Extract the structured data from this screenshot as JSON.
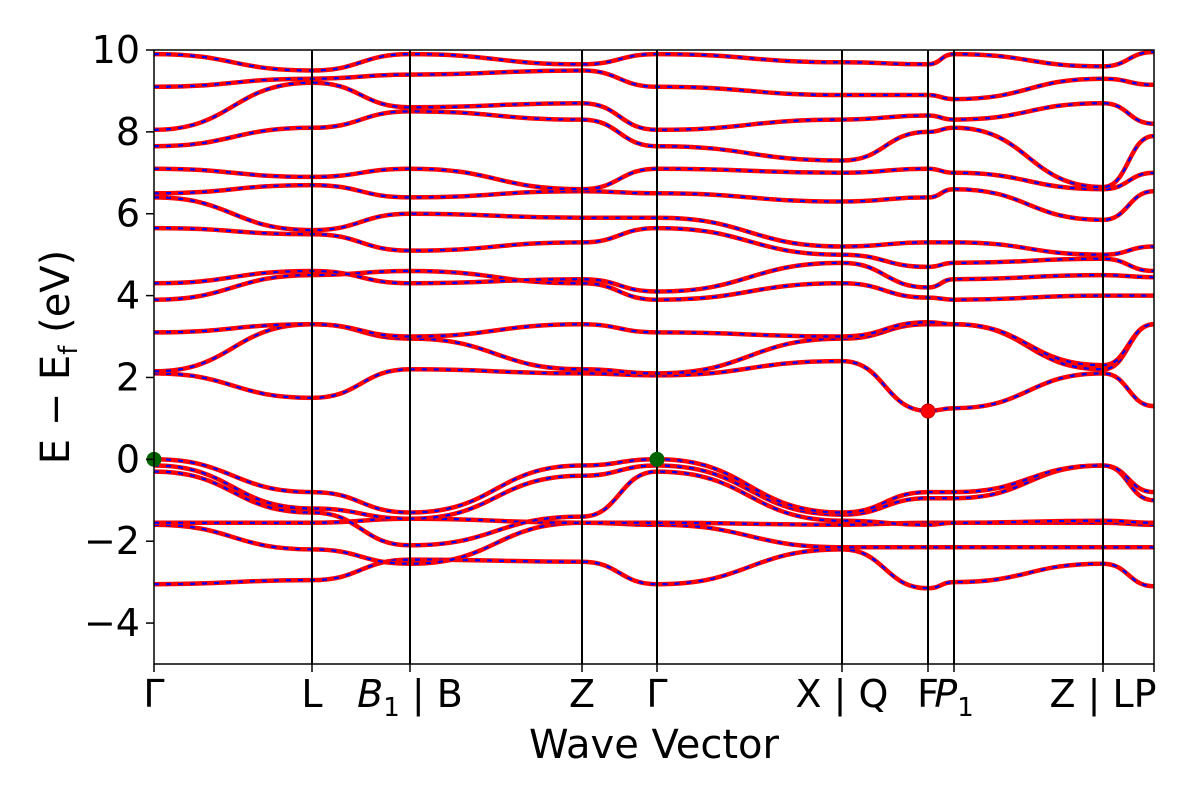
{
  "chart_data": {
    "type": "line",
    "xlabel": "Wave Vector",
    "ylabel": {
      "main": "E − E",
      "sub": "f",
      "unit": "(eV)"
    },
    "ylim": [
      -5,
      10
    ],
    "yticks": [
      {
        "value": 10,
        "label": "10"
      },
      {
        "value": 8,
        "label": "8"
      },
      {
        "value": 6,
        "label": "6"
      },
      {
        "value": 4,
        "label": "4"
      },
      {
        "value": 2,
        "label": "2"
      },
      {
        "value": 0,
        "label": "0"
      },
      {
        "value": -2,
        "label": "−2"
      },
      {
        "value": -4,
        "label": "−4"
      }
    ],
    "xlim": [
      0,
      10
    ],
    "kpoint_labels": [
      {
        "x": 0.0,
        "label": "Γ"
      },
      {
        "x": 1.58,
        "label": "L"
      },
      {
        "x": 2.56,
        "label": "B",
        "sub": "1",
        "suffix": " | B",
        "italic": true
      },
      {
        "x": 4.28,
        "label": "Z"
      },
      {
        "x": 5.03,
        "label": "Γ"
      },
      {
        "x": 6.88,
        "label": "X | Q"
      },
      {
        "x": 7.74,
        "label": "F"
      },
      {
        "x": 8.0,
        "label": "P",
        "sub": "1",
        "italic": true
      },
      {
        "x": 9.49,
        "label": "Z | LP"
      },
      {
        "x": 10.0,
        "label": ""
      }
    ],
    "vlines": [
      1.58,
      2.56,
      4.28,
      5.03,
      6.88,
      7.74,
      8.0,
      9.49
    ],
    "colors": {
      "spin_up": "#ff0000",
      "spin_down": "#0000ff",
      "vbm": "#006400",
      "cbm": "#ff0000"
    },
    "markers": [
      {
        "name": "VBM",
        "x": 0.0,
        "y": 0.0
      },
      {
        "name": "VBM",
        "x": 5.03,
        "y": 0.0
      },
      {
        "name": "CBM",
        "x": 7.74,
        "y": 1.18
      }
    ],
    "bands": [
      {
        "x": [
          0,
          1.58,
          2.56,
          4.28,
          5.03,
          6.88,
          7.74,
          8.0,
          9.49,
          10
        ],
        "y": [
          -3.05,
          -2.95,
          -2.45,
          -2.5,
          -3.05,
          -2.2,
          -3.15,
          -3.0,
          -2.55,
          -3.1
        ]
      },
      {
        "x": [
          0,
          1.58,
          2.56,
          4.28,
          5.03,
          6.88,
          7.74,
          8.0,
          9.49,
          10
        ],
        "y": [
          -1.6,
          -2.2,
          -2.55,
          -1.55,
          -1.6,
          -2.15,
          -2.15,
          -2.15,
          -2.15,
          -2.15
        ]
      },
      {
        "x": [
          0,
          1.58,
          2.56,
          4.28,
          5.03,
          6.88,
          7.74,
          8.0,
          9.49,
          10
        ],
        "y": [
          -1.55,
          -1.55,
          -1.45,
          -1.55,
          -1.55,
          -1.6,
          -1.55,
          -1.55,
          -1.55,
          -1.6
        ]
      },
      {
        "x": [
          0,
          1.58,
          2.56,
          4.28,
          5.03,
          6.88,
          7.74,
          8.0,
          9.49,
          10
        ],
        "y": [
          -0.3,
          -1.3,
          -2.1,
          -1.4,
          -0.3,
          -1.5,
          -1.6,
          -1.55,
          -1.5,
          -1.55
        ]
      },
      {
        "x": [
          0,
          1.58,
          2.56,
          4.28,
          5.03,
          6.88,
          7.74,
          8.0,
          9.49,
          10
        ],
        "y": [
          -0.15,
          -1.2,
          -1.45,
          -0.4,
          -0.15,
          -1.35,
          -0.95,
          -0.95,
          -0.15,
          -1.0
        ]
      },
      {
        "x": [
          0,
          1.58,
          2.56,
          4.28,
          5.03,
          6.88,
          7.74,
          8.0,
          9.49,
          10
        ],
        "y": [
          0.0,
          -0.8,
          -1.3,
          -0.15,
          0.0,
          -1.3,
          -0.8,
          -0.8,
          -0.15,
          -0.8
        ]
      },
      {
        "x": [
          0,
          1.58,
          2.56,
          4.28,
          5.03,
          6.88,
          7.74,
          8.0,
          9.49,
          10
        ],
        "y": [
          2.1,
          1.5,
          2.2,
          2.1,
          2.05,
          2.4,
          1.18,
          1.25,
          2.1,
          1.3
        ]
      },
      {
        "x": [
          0,
          1.58,
          2.56,
          4.28,
          5.03,
          6.88,
          7.74,
          8.0,
          9.49,
          10
        ],
        "y": [
          2.15,
          3.3,
          2.95,
          2.2,
          2.1,
          2.95,
          3.3,
          3.3,
          2.2,
          3.3
        ]
      },
      {
        "x": [
          0,
          1.58,
          2.56,
          4.28,
          5.03,
          6.88,
          7.74,
          8.0,
          9.49,
          10
        ],
        "y": [
          3.1,
          3.3,
          3.0,
          3.3,
          3.1,
          3.0,
          3.35,
          3.3,
          2.3,
          3.3
        ]
      },
      {
        "x": [
          0,
          1.58,
          2.56,
          4.28,
          5.03,
          6.88,
          7.74,
          8.0,
          9.49,
          10
        ],
        "y": [
          3.9,
          4.5,
          4.6,
          4.3,
          3.9,
          4.3,
          3.95,
          3.9,
          4.0,
          4.0
        ]
      },
      {
        "x": [
          0,
          1.58,
          2.56,
          4.28,
          5.03,
          6.88,
          7.74,
          8.0,
          9.49,
          10
        ],
        "y": [
          4.3,
          4.6,
          4.3,
          4.4,
          4.1,
          4.8,
          4.2,
          4.4,
          4.5,
          4.45
        ]
      },
      {
        "x": [
          0,
          1.58,
          2.56,
          4.28,
          5.03,
          6.88,
          7.74,
          8.0,
          9.49,
          10
        ],
        "y": [
          5.65,
          5.5,
          5.1,
          5.3,
          5.65,
          5.0,
          4.7,
          4.8,
          4.9,
          4.6
        ]
      },
      {
        "x": [
          0,
          1.58,
          2.56,
          4.28,
          5.03,
          6.88,
          7.74,
          8.0,
          9.49,
          10
        ],
        "y": [
          6.4,
          5.6,
          6.0,
          5.9,
          5.9,
          5.2,
          5.3,
          5.3,
          5.0,
          5.2
        ]
      },
      {
        "x": [
          0,
          1.58,
          2.56,
          4.28,
          5.03,
          6.88,
          7.74,
          8.0,
          9.49,
          10
        ],
        "y": [
          6.5,
          6.7,
          6.4,
          6.55,
          6.5,
          6.3,
          6.4,
          6.6,
          5.85,
          6.55
        ]
      },
      {
        "x": [
          0,
          1.58,
          2.56,
          4.28,
          5.03,
          6.88,
          7.74,
          8.0,
          9.49,
          10
        ],
        "y": [
          7.1,
          6.9,
          7.1,
          6.6,
          7.1,
          7.0,
          7.1,
          7.0,
          6.6,
          7.0
        ]
      },
      {
        "x": [
          0,
          1.58,
          2.56,
          4.28,
          5.03,
          6.88,
          7.74,
          8.0,
          9.49,
          10
        ],
        "y": [
          7.65,
          8.1,
          8.5,
          8.3,
          7.65,
          7.3,
          8.0,
          8.1,
          6.65,
          7.9
        ]
      },
      {
        "x": [
          0,
          1.58,
          2.56,
          4.28,
          5.03,
          6.88,
          7.74,
          8.0,
          9.49,
          10
        ],
        "y": [
          8.05,
          9.2,
          8.6,
          8.7,
          8.05,
          8.3,
          8.4,
          8.3,
          8.7,
          8.2
        ]
      },
      {
        "x": [
          0,
          1.58,
          2.56,
          4.28,
          5.03,
          6.88,
          7.74,
          8.0,
          9.49,
          10
        ],
        "y": [
          9.1,
          9.3,
          9.4,
          9.5,
          9.1,
          8.9,
          8.9,
          8.8,
          9.3,
          9.15
        ]
      },
      {
        "x": [
          0,
          1.58,
          2.56,
          4.28,
          5.03,
          6.88,
          7.74,
          8.0,
          9.49,
          10
        ],
        "y": [
          9.9,
          9.5,
          9.9,
          9.65,
          9.9,
          9.7,
          9.65,
          9.9,
          9.6,
          9.95
        ]
      }
    ]
  }
}
